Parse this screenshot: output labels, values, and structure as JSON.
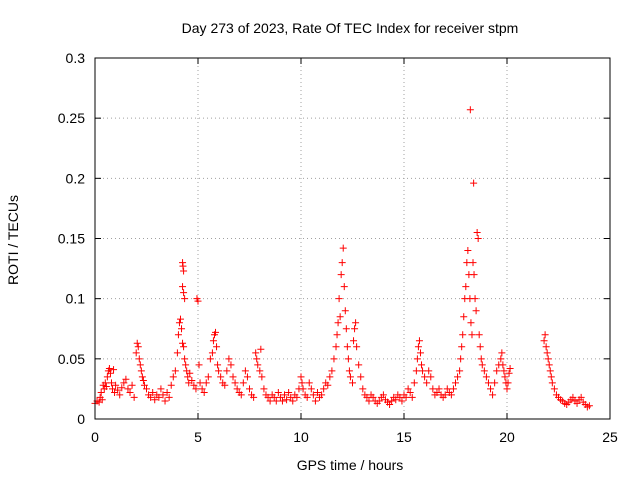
{
  "chart_data": {
    "type": "scatter",
    "title": "Day 273 of 2023, Rate Of TEC Index for receiver stpm",
    "xlabel": "GPS time / hours",
    "ylabel": "ROTI / TECUs",
    "xlim": [
      0,
      25
    ],
    "ylim": [
      0,
      0.3
    ],
    "x_ticks": [
      0,
      5,
      10,
      15,
      20,
      25
    ],
    "x_tick_labels": [
      "0",
      "5",
      "10",
      "15",
      "20",
      "25"
    ],
    "y_ticks": [
      0,
      0.05,
      0.1,
      0.15,
      0.2,
      0.25,
      0.3
    ],
    "y_tick_labels": [
      "0",
      "0.05",
      "0.1",
      "0.15",
      "0.2",
      "0.25",
      "0.3"
    ],
    "grid": true,
    "legend": "none",
    "marker": "+",
    "series": [
      {
        "color": "#ff0000",
        "points": [
          [
            0.0,
            0.013
          ],
          [
            0.1,
            0.015
          ],
          [
            0.2,
            0.014
          ],
          [
            0.25,
            0.018
          ],
          [
            0.3,
            0.022
          ],
          [
            0.35,
            0.016
          ],
          [
            0.4,
            0.028
          ],
          [
            0.45,
            0.025
          ],
          [
            0.5,
            0.03
          ],
          [
            0.55,
            0.027
          ],
          [
            0.6,
            0.035
          ],
          [
            0.65,
            0.04
          ],
          [
            0.7,
            0.042
          ],
          [
            0.75,
            0.038
          ],
          [
            0.8,
            0.03
          ],
          [
            0.85,
            0.025
          ],
          [
            0.9,
            0.041
          ],
          [
            0.95,
            0.022
          ],
          [
            1.0,
            0.028
          ],
          [
            1.1,
            0.024
          ],
          [
            1.2,
            0.02
          ],
          [
            1.3,
            0.026
          ],
          [
            1.4,
            0.03
          ],
          [
            1.5,
            0.033
          ],
          [
            1.6,
            0.025
          ],
          [
            1.7,
            0.022
          ],
          [
            1.8,
            0.028
          ],
          [
            1.9,
            0.018
          ],
          [
            2.0,
            0.055
          ],
          [
            2.05,
            0.063
          ],
          [
            2.1,
            0.06
          ],
          [
            2.15,
            0.05
          ],
          [
            2.2,
            0.045
          ],
          [
            2.25,
            0.04
          ],
          [
            2.3,
            0.035
          ],
          [
            2.35,
            0.032
          ],
          [
            2.4,
            0.028
          ],
          [
            2.5,
            0.025
          ],
          [
            2.6,
            0.02
          ],
          [
            2.7,
            0.018
          ],
          [
            2.8,
            0.022
          ],
          [
            2.9,
            0.016
          ],
          [
            3.0,
            0.02
          ],
          [
            3.1,
            0.018
          ],
          [
            3.2,
            0.025
          ],
          [
            3.3,
            0.02
          ],
          [
            3.4,
            0.015
          ],
          [
            3.5,
            0.022
          ],
          [
            3.6,
            0.018
          ],
          [
            3.7,
            0.028
          ],
          [
            3.8,
            0.035
          ],
          [
            3.9,
            0.04
          ],
          [
            4.0,
            0.055
          ],
          [
            4.05,
            0.07
          ],
          [
            4.1,
            0.08
          ],
          [
            4.15,
            0.083
          ],
          [
            4.2,
            0.075
          ],
          [
            4.25,
            0.063
          ],
          [
            4.3,
            0.06
          ],
          [
            4.35,
            0.05
          ],
          [
            4.4,
            0.045
          ],
          [
            4.45,
            0.04
          ],
          [
            4.5,
            0.035
          ],
          [
            4.55,
            0.03
          ],
          [
            4.6,
            0.038
          ],
          [
            4.7,
            0.032
          ],
          [
            4.8,
            0.028
          ],
          [
            4.9,
            0.025
          ],
          [
            4.25,
            0.13
          ],
          [
            4.27,
            0.127
          ],
          [
            4.3,
            0.123
          ],
          [
            4.25,
            0.11
          ],
          [
            4.3,
            0.105
          ],
          [
            4.35,
            0.1
          ],
          [
            4.95,
            0.1
          ],
          [
            5.0,
            0.098
          ],
          [
            5.05,
            0.045
          ],
          [
            5.1,
            0.03
          ],
          [
            5.2,
            0.025
          ],
          [
            5.3,
            0.022
          ],
          [
            5.4,
            0.03
          ],
          [
            5.5,
            0.035
          ],
          [
            5.6,
            0.05
          ],
          [
            5.7,
            0.055
          ],
          [
            5.75,
            0.065
          ],
          [
            5.8,
            0.07
          ],
          [
            5.85,
            0.072
          ],
          [
            5.9,
            0.06
          ],
          [
            5.95,
            0.045
          ],
          [
            6.0,
            0.04
          ],
          [
            6.1,
            0.035
          ],
          [
            6.2,
            0.03
          ],
          [
            6.3,
            0.028
          ],
          [
            6.4,
            0.04
          ],
          [
            6.5,
            0.05
          ],
          [
            6.6,
            0.045
          ],
          [
            6.7,
            0.035
          ],
          [
            6.8,
            0.03
          ],
          [
            6.9,
            0.025
          ],
          [
            7.0,
            0.022
          ],
          [
            7.1,
            0.02
          ],
          [
            7.2,
            0.03
          ],
          [
            7.3,
            0.04
          ],
          [
            7.4,
            0.035
          ],
          [
            7.5,
            0.025
          ],
          [
            7.6,
            0.02
          ],
          [
            7.7,
            0.018
          ],
          [
            7.8,
            0.055
          ],
          [
            7.85,
            0.05
          ],
          [
            7.9,
            0.045
          ],
          [
            8.0,
            0.04
          ],
          [
            8.05,
            0.058
          ],
          [
            8.1,
            0.035
          ],
          [
            8.2,
            0.025
          ],
          [
            8.3,
            0.02
          ],
          [
            8.4,
            0.018
          ],
          [
            8.5,
            0.015
          ],
          [
            8.6,
            0.02
          ],
          [
            8.7,
            0.018
          ],
          [
            8.8,
            0.015
          ],
          [
            8.9,
            0.022
          ],
          [
            9.0,
            0.018
          ],
          [
            9.1,
            0.015
          ],
          [
            9.2,
            0.02
          ],
          [
            9.3,
            0.016
          ],
          [
            9.4,
            0.022
          ],
          [
            9.5,
            0.018
          ],
          [
            9.6,
            0.015
          ],
          [
            9.7,
            0.02
          ],
          [
            9.8,
            0.018
          ],
          [
            9.9,
            0.025
          ],
          [
            10.0,
            0.035
          ],
          [
            10.05,
            0.03
          ],
          [
            10.1,
            0.025
          ],
          [
            10.2,
            0.02
          ],
          [
            10.3,
            0.018
          ],
          [
            10.4,
            0.03
          ],
          [
            10.5,
            0.025
          ],
          [
            10.6,
            0.02
          ],
          [
            10.7,
            0.015
          ],
          [
            10.8,
            0.022
          ],
          [
            10.9,
            0.018
          ],
          [
            11.0,
            0.02
          ],
          [
            11.1,
            0.025
          ],
          [
            11.2,
            0.03
          ],
          [
            11.3,
            0.028
          ],
          [
            11.4,
            0.035
          ],
          [
            11.5,
            0.04
          ],
          [
            11.6,
            0.05
          ],
          [
            11.7,
            0.06
          ],
          [
            11.75,
            0.07
          ],
          [
            11.8,
            0.08
          ],
          [
            11.85,
            0.1
          ],
          [
            11.9,
            0.085
          ],
          [
            11.95,
            0.12
          ],
          [
            12.0,
            0.13
          ],
          [
            12.05,
            0.142
          ],
          [
            12.1,
            0.11
          ],
          [
            12.15,
            0.09
          ],
          [
            12.2,
            0.075
          ],
          [
            12.25,
            0.06
          ],
          [
            12.3,
            0.05
          ],
          [
            12.35,
            0.04
          ],
          [
            12.4,
            0.035
          ],
          [
            12.5,
            0.03
          ],
          [
            12.55,
            0.065
          ],
          [
            12.6,
            0.075
          ],
          [
            12.65,
            0.08
          ],
          [
            12.7,
            0.06
          ],
          [
            12.8,
            0.045
          ],
          [
            12.9,
            0.035
          ],
          [
            13.0,
            0.025
          ],
          [
            13.1,
            0.02
          ],
          [
            13.2,
            0.018
          ],
          [
            13.3,
            0.015
          ],
          [
            13.4,
            0.02
          ],
          [
            13.5,
            0.018
          ],
          [
            13.6,
            0.015
          ],
          [
            13.7,
            0.013
          ],
          [
            13.8,
            0.015
          ],
          [
            13.9,
            0.018
          ],
          [
            14.0,
            0.02
          ],
          [
            14.1,
            0.016
          ],
          [
            14.2,
            0.014
          ],
          [
            14.3,
            0.012
          ],
          [
            14.4,
            0.015
          ],
          [
            14.5,
            0.018
          ],
          [
            14.6,
            0.016
          ],
          [
            14.7,
            0.02
          ],
          [
            14.8,
            0.018
          ],
          [
            14.9,
            0.015
          ],
          [
            15.0,
            0.02
          ],
          [
            15.1,
            0.018
          ],
          [
            15.2,
            0.025
          ],
          [
            15.3,
            0.022
          ],
          [
            15.4,
            0.018
          ],
          [
            15.5,
            0.03
          ],
          [
            15.6,
            0.04
          ],
          [
            15.65,
            0.05
          ],
          [
            15.7,
            0.06
          ],
          [
            15.75,
            0.065
          ],
          [
            15.8,
            0.055
          ],
          [
            15.85,
            0.045
          ],
          [
            15.9,
            0.04
          ],
          [
            16.0,
            0.035
          ],
          [
            16.1,
            0.03
          ],
          [
            16.2,
            0.04
          ],
          [
            16.3,
            0.035
          ],
          [
            16.4,
            0.025
          ],
          [
            16.5,
            0.02
          ],
          [
            16.6,
            0.022
          ],
          [
            16.7,
            0.025
          ],
          [
            16.8,
            0.02
          ],
          [
            16.9,
            0.018
          ],
          [
            17.0,
            0.02
          ],
          [
            17.1,
            0.025
          ],
          [
            17.2,
            0.022
          ],
          [
            17.3,
            0.02
          ],
          [
            17.4,
            0.025
          ],
          [
            17.5,
            0.03
          ],
          [
            17.6,
            0.035
          ],
          [
            17.7,
            0.04
          ],
          [
            17.75,
            0.05
          ],
          [
            17.8,
            0.06
          ],
          [
            17.85,
            0.07
          ],
          [
            17.9,
            0.085
          ],
          [
            17.95,
            0.1
          ],
          [
            18.0,
            0.11
          ],
          [
            18.05,
            0.13
          ],
          [
            18.1,
            0.14
          ],
          [
            18.15,
            0.12
          ],
          [
            18.2,
            0.1
          ],
          [
            18.25,
            0.08
          ],
          [
            18.3,
            0.07
          ],
          [
            18.35,
            0.13
          ],
          [
            18.4,
            0.12
          ],
          [
            18.45,
            0.1
          ],
          [
            18.5,
            0.09
          ],
          [
            18.55,
            0.155
          ],
          [
            18.6,
            0.15
          ],
          [
            18.65,
            0.07
          ],
          [
            18.7,
            0.06
          ],
          [
            18.75,
            0.05
          ],
          [
            18.8,
            0.045
          ],
          [
            18.9,
            0.04
          ],
          [
            18.22,
            0.257
          ],
          [
            18.38,
            0.196
          ],
          [
            19.0,
            0.035
          ],
          [
            19.1,
            0.03
          ],
          [
            19.2,
            0.025
          ],
          [
            19.3,
            0.02
          ],
          [
            19.4,
            0.03
          ],
          [
            19.5,
            0.04
          ],
          [
            19.6,
            0.045
          ],
          [
            19.7,
            0.05
          ],
          [
            19.75,
            0.055
          ],
          [
            19.8,
            0.045
          ],
          [
            19.85,
            0.04
          ],
          [
            19.9,
            0.035
          ],
          [
            19.95,
            0.03
          ],
          [
            20.0,
            0.025
          ],
          [
            20.05,
            0.03
          ],
          [
            20.1,
            0.038
          ],
          [
            20.15,
            0.042
          ],
          [
            21.8,
            0.065
          ],
          [
            21.85,
            0.07
          ],
          [
            21.9,
            0.06
          ],
          [
            21.95,
            0.055
          ],
          [
            22.0,
            0.05
          ],
          [
            22.05,
            0.045
          ],
          [
            22.1,
            0.04
          ],
          [
            22.15,
            0.035
          ],
          [
            22.2,
            0.03
          ],
          [
            22.3,
            0.025
          ],
          [
            22.4,
            0.02
          ],
          [
            22.5,
            0.018
          ],
          [
            22.6,
            0.016
          ],
          [
            22.7,
            0.015
          ],
          [
            22.8,
            0.013
          ],
          [
            22.9,
            0.012
          ],
          [
            23.0,
            0.014
          ],
          [
            23.1,
            0.016
          ],
          [
            23.2,
            0.018
          ],
          [
            23.3,
            0.015
          ],
          [
            23.4,
            0.013
          ],
          [
            23.5,
            0.016
          ],
          [
            23.6,
            0.018
          ],
          [
            23.7,
            0.014
          ],
          [
            23.8,
            0.012
          ],
          [
            23.9,
            0.01
          ],
          [
            24.0,
            0.011
          ]
        ]
      }
    ]
  }
}
